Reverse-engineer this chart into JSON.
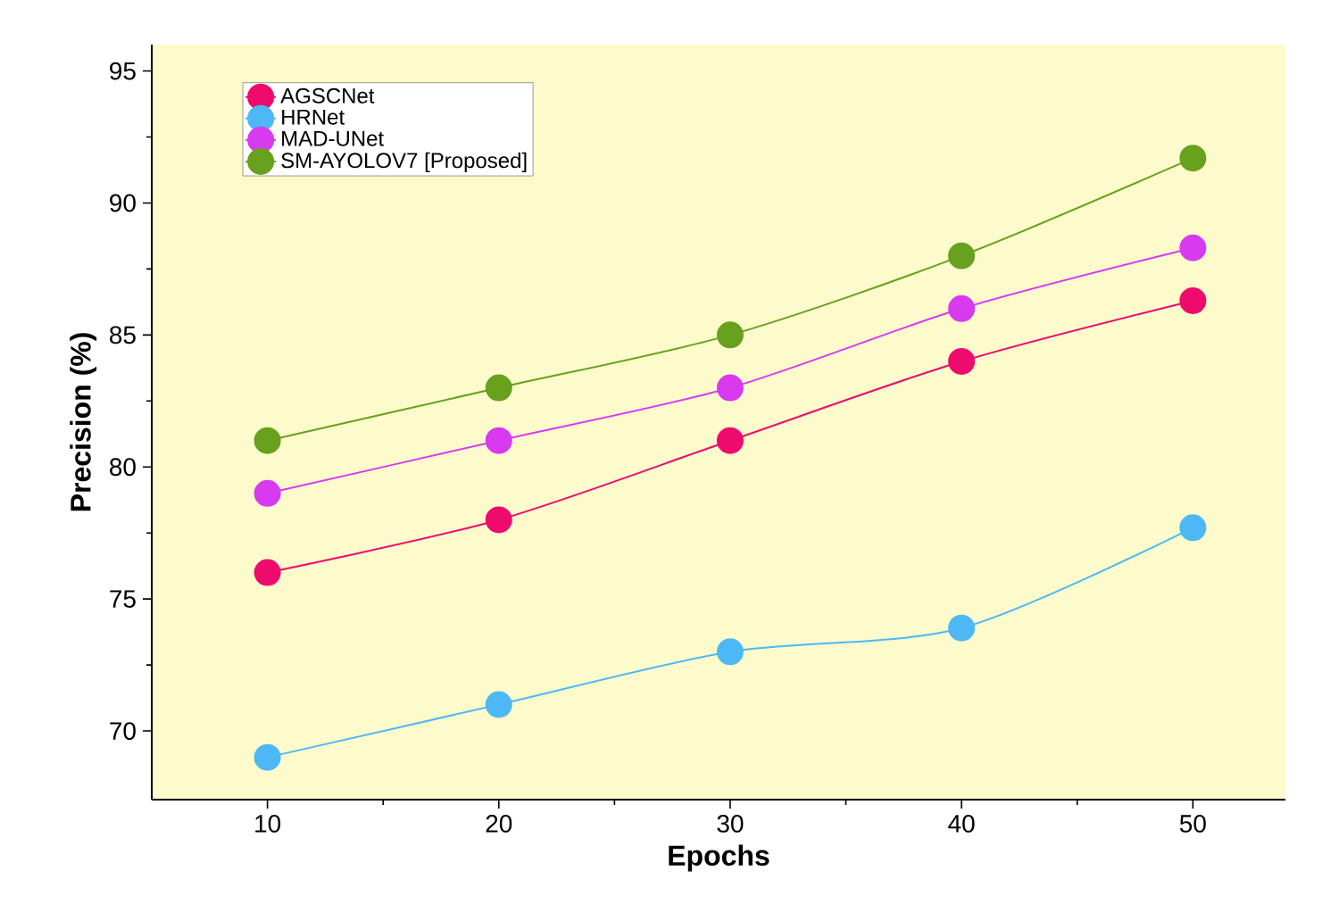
{
  "chart_data": {
    "type": "line",
    "xlabel": "Epochs",
    "ylabel": "Precision (%)",
    "x": [
      10,
      20,
      30,
      40,
      50
    ],
    "series": [
      {
        "name": "AGSCNet",
        "color": "#ef0a6e",
        "values": [
          76,
          78,
          81,
          84,
          86.3
        ]
      },
      {
        "name": "HRNet",
        "color": "#4db8f5",
        "values": [
          69,
          71,
          73,
          73.9,
          77.7
        ]
      },
      {
        "name": "MAD-UNet",
        "color": "#d83af0",
        "values": [
          79,
          81,
          83,
          86,
          88.3
        ]
      },
      {
        "name": "SM-AYOLOV7 [Proposed]",
        "color": "#68a11d",
        "values": [
          81,
          83,
          85,
          88,
          91.7
        ]
      }
    ],
    "xlim": [
      5,
      54
    ],
    "ylim": [
      67.4,
      96
    ],
    "xticks": [
      10,
      20,
      30,
      40,
      50
    ],
    "yticks": [
      70,
      75,
      80,
      85,
      90,
      95
    ],
    "marker": "circle",
    "line_style": "solid",
    "legend": "top left",
    "grid": false
  }
}
